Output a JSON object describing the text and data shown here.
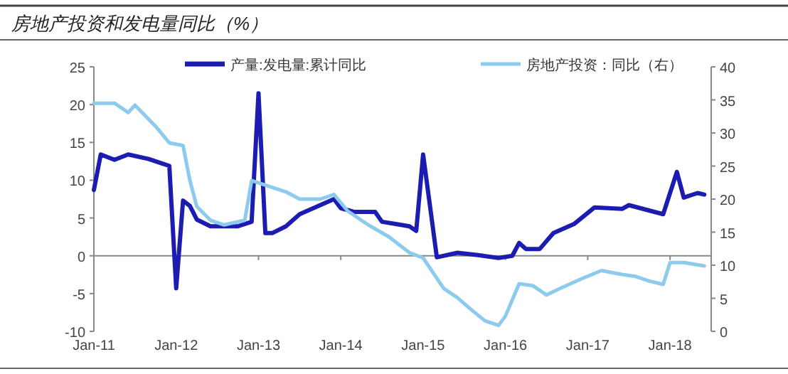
{
  "chart_data": {
    "type": "line",
    "title": "房地产投资和发电量同比（%）",
    "legend": "top",
    "xlim": [
      "2011-01",
      "2018-07"
    ],
    "xticks": [
      {
        "value": "2011-01",
        "label": "Jan-11"
      },
      {
        "value": "2012-01",
        "label": "Jan-12"
      },
      {
        "value": "2013-01",
        "label": "Jan-13"
      },
      {
        "value": "2014-01",
        "label": "Jan-14"
      },
      {
        "value": "2015-01",
        "label": "Jan-15"
      },
      {
        "value": "2016-01",
        "label": "Jan-16"
      },
      {
        "value": "2017-01",
        "label": "Jan-17"
      },
      {
        "value": "2018-01",
        "label": "Jan-18"
      }
    ],
    "ylim": [
      -10,
      25
    ],
    "yticks": [
      -10,
      -5,
      0,
      5,
      10,
      15,
      20,
      25
    ],
    "y2lim": [
      0,
      40
    ],
    "y2ticks": [
      0,
      5,
      10,
      15,
      20,
      25,
      30,
      35,
      40
    ],
    "series": [
      {
        "name": "产量:发电量:累计同比",
        "color": "#1c1cb0",
        "x": [
          "2011-01",
          "2011-02",
          "2011-04",
          "2011-06",
          "2011-09",
          "2011-11",
          "2011-12",
          "2012-01",
          "2012-02",
          "2012-03",
          "2012-04",
          "2012-06",
          "2012-10",
          "2012-12",
          "2013-01",
          "2013-02",
          "2013-03",
          "2013-05",
          "2013-07",
          "2013-09",
          "2013-12",
          "2014-01",
          "2014-03",
          "2014-06",
          "2014-07",
          "2014-09",
          "2014-11",
          "2014-12",
          "2015-01",
          "2015-03",
          "2015-06",
          "2015-09",
          "2015-12",
          "2016-02",
          "2016-03",
          "2016-04",
          "2016-06",
          "2016-08",
          "2016-11",
          "2017-02",
          "2017-06",
          "2017-07",
          "2017-12",
          "2018-02",
          "2018-03",
          "2018-05",
          "2018-06"
        ],
        "values": [
          8.7,
          13.4,
          12.7,
          13.4,
          12.8,
          12.2,
          11.9,
          -4.3,
          7.3,
          6.6,
          4.8,
          3.9,
          3.9,
          4.5,
          21.5,
          3.0,
          3.0,
          3.9,
          5.5,
          6.3,
          7.5,
          6.3,
          5.8,
          5.8,
          4.5,
          4.2,
          3.9,
          3.3,
          13.4,
          -0.2,
          0.4,
          0.1,
          -0.3,
          0,
          1.7,
          0.9,
          0.9,
          3.0,
          4.2,
          6.4,
          6.2,
          6.7,
          5.5,
          11.1,
          7.7,
          8.3,
          8.1
        ]
      },
      {
        "name": "房地产投资：同比（右）",
        "color": "#8ccaee",
        "axis": "y2",
        "x": [
          "2011-01",
          "2011-04",
          "2011-06",
          "2011-07",
          "2011-10",
          "2011-12",
          "2012-02",
          "2012-03",
          "2012-04",
          "2012-06",
          "2012-08",
          "2012-11",
          "2012-12",
          "2013-02",
          "2013-05",
          "2013-07",
          "2013-10",
          "2013-12",
          "2014-02",
          "2014-05",
          "2014-08",
          "2014-11",
          "2015-01",
          "2015-04",
          "2015-06",
          "2015-08",
          "2015-10",
          "2015-12",
          "2016-01",
          "2016-03",
          "2016-05",
          "2016-07",
          "2016-09",
          "2016-12",
          "2017-03",
          "2017-06",
          "2017-08",
          "2017-10",
          "2017-12",
          "2018-01",
          "2018-03",
          "2018-06"
        ],
        "values": [
          34.5,
          34.5,
          33.1,
          34.2,
          31.0,
          28.5,
          28.1,
          22.8,
          18.9,
          16.8,
          16.1,
          16.8,
          22.8,
          22.1,
          21.1,
          20,
          20,
          20.7,
          18.2,
          16.1,
          14.3,
          11.9,
          11.1,
          6.5,
          5.1,
          3.3,
          1.6,
          0.9,
          2.3,
          7.2,
          6.9,
          5.5,
          6.5,
          7.9,
          9.2,
          8.6,
          8.3,
          7.6,
          7.1,
          10.4,
          10.4,
          9.9
        ]
      }
    ]
  }
}
